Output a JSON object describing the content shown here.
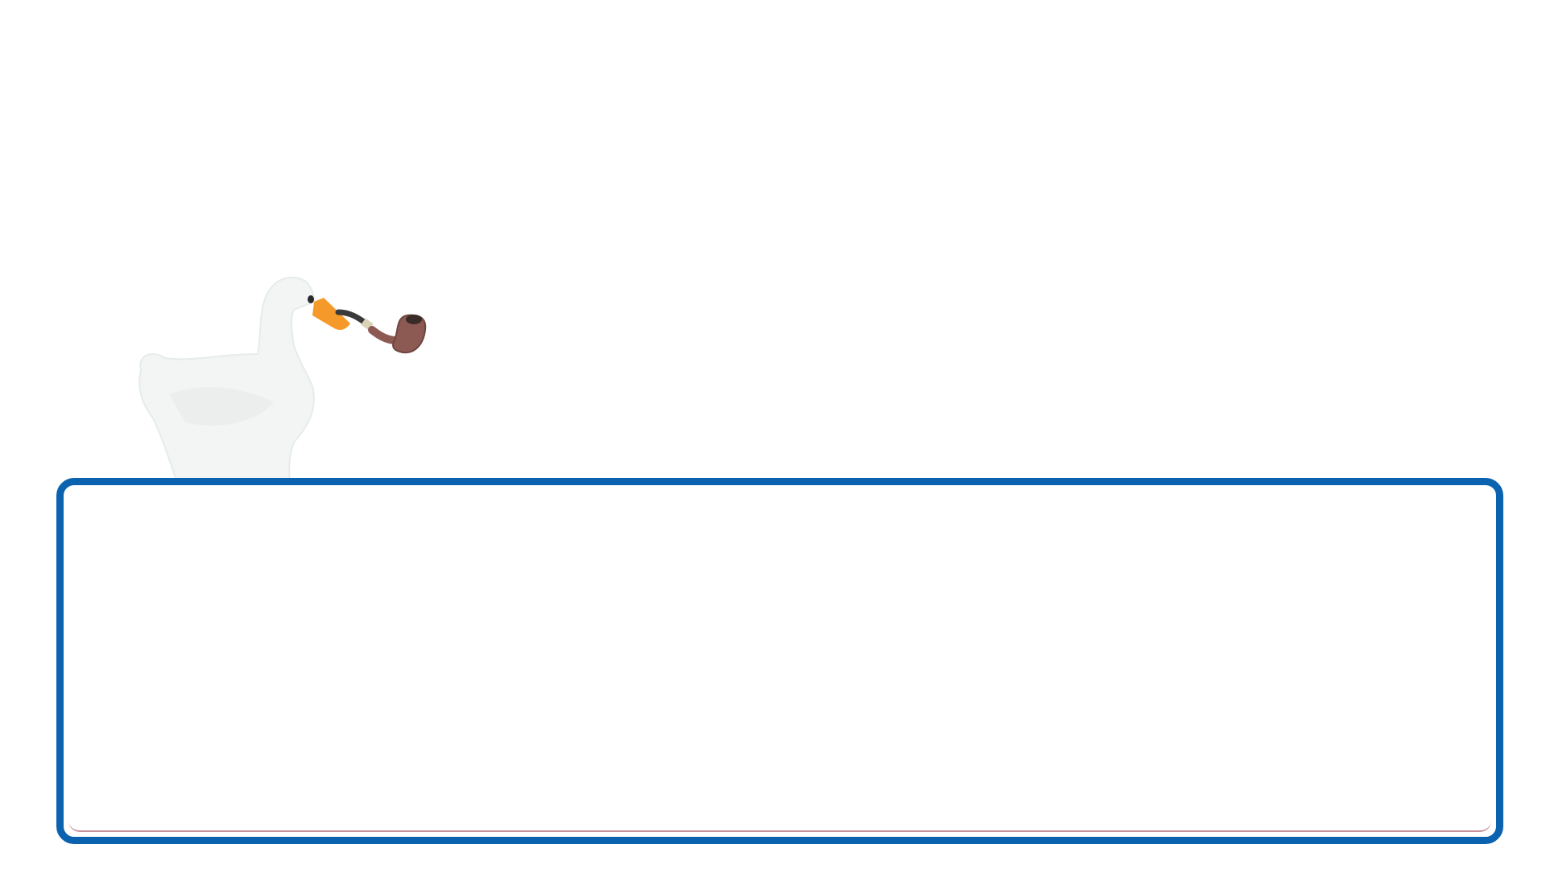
{
  "scene": {
    "background_color": "#ffffff",
    "character": {
      "name_icon": "goose-with-pipe-icon",
      "body_color": "#f3f4f4",
      "beak_color": "#f59a2a",
      "pipe_bowl_color": "#8c5a52",
      "pipe_stem_color": "#3a3a3a"
    }
  },
  "dialog": {
    "border_color": "#0b63b0",
    "text": ""
  }
}
